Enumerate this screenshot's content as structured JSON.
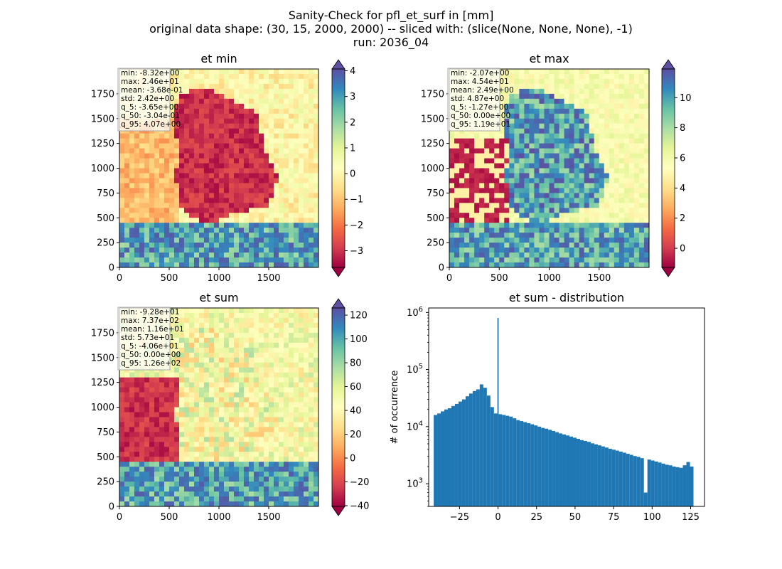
{
  "figure": {
    "title_lines": [
      "Sanity-Check for pfl_et_surf in [mm]",
      "original data shape: (30, 15, 2000, 2000) -- sliced with: (slice(None, None, None), -1)",
      "run: 2036_04"
    ]
  },
  "chart_data": [
    {
      "type": "heatmap",
      "title": "et min",
      "xlim": [
        0,
        2000
      ],
      "ylim": [
        0,
        2000
      ],
      "xticks": [
        0,
        500,
        1000,
        1500
      ],
      "yticks": [
        0,
        250,
        500,
        750,
        1000,
        1250,
        1500,
        1750
      ],
      "colormap": "Spectral",
      "colorbar": {
        "range": [
          -3.65,
          4.07
        ],
        "ticks": [
          -3,
          -2,
          -1,
          0,
          1,
          2,
          3,
          4
        ],
        "extend": "both"
      },
      "stats": [
        "min: -8.32e+00",
        "max: 2.46e+01",
        "mean: -3.68e-01",
        "std: 2.42e+00",
        "q_5: -3.65e+00",
        "q_50: -3.04e-01",
        "q_95: 4.07e+00"
      ]
    },
    {
      "type": "heatmap",
      "title": "et max",
      "xlim": [
        0,
        2000
      ],
      "ylim": [
        0,
        2000
      ],
      "xticks": [
        0,
        500,
        1000,
        1500
      ],
      "yticks": [
        0,
        250,
        500,
        750,
        1000,
        1250,
        1500,
        1750
      ],
      "colormap": "Spectral",
      "colorbar": {
        "range": [
          -1.27,
          11.9
        ],
        "ticks": [
          0,
          2,
          4,
          6,
          8,
          10
        ],
        "extend": "both"
      },
      "stats": [
        "min: -2.07e+00",
        "max: 4.54e+01",
        "mean: 2.49e+00",
        "std: 4.87e+00",
        "q_5: -1.27e+00",
        "q_50: 0.00e+00",
        "q_95: 1.19e+01"
      ]
    },
    {
      "type": "heatmap",
      "title": "et sum",
      "xlim": [
        0,
        2000
      ],
      "ylim": [
        0,
        2000
      ],
      "xticks": [
        0,
        500,
        1000,
        1500
      ],
      "yticks": [
        0,
        250,
        500,
        750,
        1000,
        1250,
        1500,
        1750
      ],
      "colormap": "Spectral",
      "colorbar": {
        "range": [
          -40.6,
          126
        ],
        "ticks": [
          -40,
          -20,
          0,
          20,
          40,
          60,
          80,
          100,
          120
        ],
        "extend": "both"
      },
      "stats": [
        "min: -9.28e+01",
        "max: 7.37e+02",
        "mean: 1.16e+01",
        "std: 5.73e+01",
        "q_5: -4.06e+01",
        "q_50: 0.00e+00",
        "q_95: 1.26e+02"
      ]
    },
    {
      "type": "bar",
      "title": "et sum - distribution",
      "xlabel": "",
      "ylabel": "# of occurrence",
      "yscale": "log",
      "xlim": [
        -45,
        134
      ],
      "ylim": [
        400,
        1200000
      ],
      "xticks": [
        -25,
        0,
        25,
        50,
        75,
        100,
        125
      ],
      "ytick_labels": [
        {
          "base": "10",
          "exp": "3",
          "value": 1000
        },
        {
          "base": "10",
          "exp": "4",
          "value": 10000
        },
        {
          "base": "10",
          "exp": "5",
          "value": 100000
        },
        {
          "base": "10",
          "exp": "6",
          "value": 1000000
        }
      ],
      "bar_color": "#1f77b4",
      "bin_width": 0.83,
      "x": [
        -40.6,
        -38.3,
        -36.0,
        -33.7,
        -31.4,
        -29.1,
        -26.8,
        -24.5,
        -22.2,
        -19.9,
        -17.6,
        -15.3,
        -13.0,
        -10.7,
        -8.4,
        -6.1,
        -3.8,
        -1.5,
        0.0,
        1.5,
        3.8,
        6.1,
        8.4,
        10.7,
        13.0,
        15.3,
        17.6,
        19.9,
        22.2,
        24.5,
        26.8,
        29.1,
        31.4,
        33.7,
        36.0,
        38.3,
        40.6,
        42.9,
        45.2,
        47.5,
        49.8,
        52.1,
        54.4,
        56.7,
        59.0,
        61.3,
        63.6,
        65.9,
        68.2,
        70.5,
        72.8,
        75.1,
        77.4,
        79.7,
        82.0,
        84.3,
        86.6,
        88.9,
        91.2,
        93.5,
        95.8,
        98.1,
        100.4,
        102.7,
        105.0,
        107.3,
        109.6,
        111.9,
        114.2,
        116.5,
        118.8,
        121.1,
        123.4,
        125.7
      ],
      "values": [
        16000,
        17000,
        18500,
        20000,
        21000,
        23000,
        25000,
        27500,
        30000,
        34000,
        38000,
        42000,
        45000,
        55000,
        48000,
        35000,
        22000,
        17000,
        800000,
        16500,
        16000,
        15500,
        15000,
        14000,
        13000,
        12500,
        12000,
        11500,
        11000,
        10500,
        10000,
        9500,
        9200,
        8800,
        8400,
        8000,
        7600,
        7300,
        7000,
        6700,
        6400,
        6100,
        5800,
        5600,
        5400,
        5100,
        4900,
        4700,
        4500,
        4300,
        4100,
        3950,
        3800,
        3650,
        3500,
        3350,
        3200,
        3050,
        2950,
        2800,
        700,
        2650,
        2550,
        2450,
        2350,
        2250,
        2150,
        2100,
        2000,
        1950,
        1900,
        2100,
        2400,
        2000
      ]
    }
  ]
}
